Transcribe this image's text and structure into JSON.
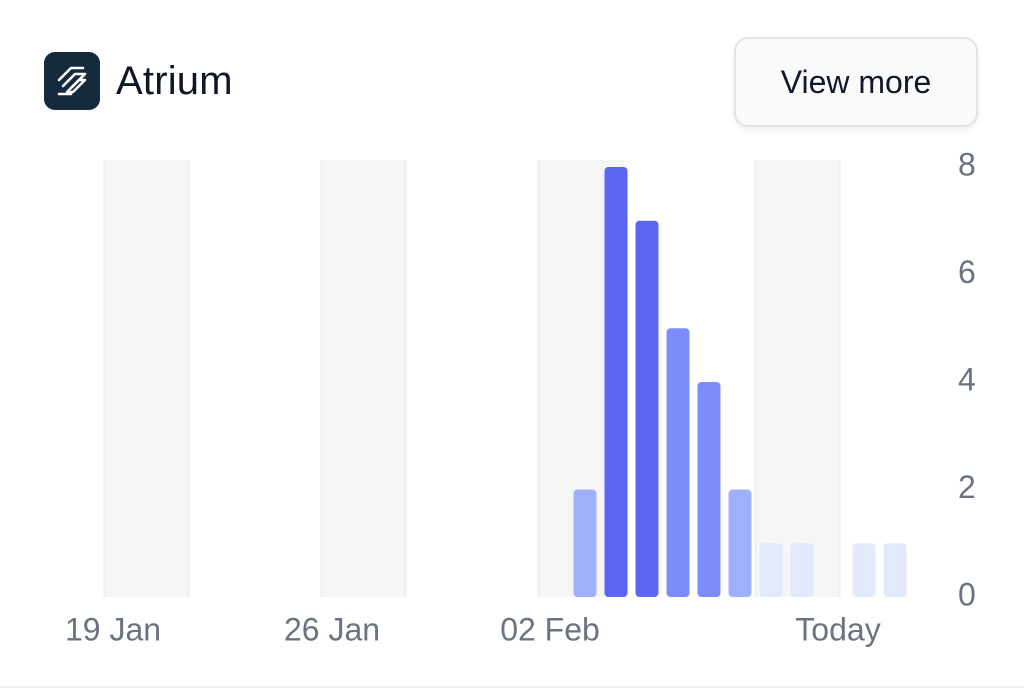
{
  "header": {
    "title": "Atrium",
    "logo_icon": "atrium-logo-icon",
    "view_more_label": "View more"
  },
  "colors": {
    "accent_strong": "#5b67f3",
    "accent_mid": "#7c8cfa",
    "accent_light": "#9fb0fb",
    "accent_faint": "#e2e9fc",
    "week_band": "#f6f6f7",
    "divider": "#eceef2",
    "tick_text": "#6b7280"
  },
  "chart_data": {
    "type": "bar",
    "x_labels": [
      "19 Jan",
      "26 Jan",
      "02 Feb",
      "Today"
    ],
    "values": [
      {
        "day": "2025-01-16",
        "value": 0
      },
      {
        "day": "2025-01-17",
        "value": 0
      },
      {
        "day": "2025-01-18",
        "value": 0
      },
      {
        "day": "2025-01-19",
        "value": 0
      },
      {
        "day": "2025-01-20",
        "value": 0
      },
      {
        "day": "2025-01-21",
        "value": 0
      },
      {
        "day": "2025-01-22",
        "value": 0
      },
      {
        "day": "2025-01-23",
        "value": 0
      },
      {
        "day": "2025-01-24",
        "value": 0
      },
      {
        "day": "2025-01-25",
        "value": 0
      },
      {
        "day": "2025-01-26",
        "value": 0
      },
      {
        "day": "2025-01-27",
        "value": 0
      },
      {
        "day": "2025-01-28",
        "value": 0
      },
      {
        "day": "2025-01-29",
        "value": 0
      },
      {
        "day": "2025-01-30",
        "value": 0
      },
      {
        "day": "2025-01-31",
        "value": 0
      },
      {
        "day": "2025-02-01",
        "value": 0
      },
      {
        "day": "2025-02-02",
        "value": 2
      },
      {
        "day": "2025-02-03",
        "value": 8
      },
      {
        "day": "2025-02-04",
        "value": 7
      },
      {
        "day": "2025-02-05",
        "value": 5
      },
      {
        "day": "2025-02-06",
        "value": 4
      },
      {
        "day": "2025-02-07",
        "value": 2
      },
      {
        "day": "2025-02-08",
        "value": 1
      },
      {
        "day": "2025-02-09",
        "value": 1
      },
      {
        "day": "2025-02-10",
        "value": 0
      },
      {
        "day": "2025-02-11",
        "value": 1
      },
      {
        "day": "2025-02-12",
        "value": 1
      }
    ],
    "y_ticks": [
      0,
      2,
      4,
      6,
      8
    ],
    "ylim": [
      0,
      8
    ],
    "y_axis_side": "right",
    "weekend_bands": true
  }
}
